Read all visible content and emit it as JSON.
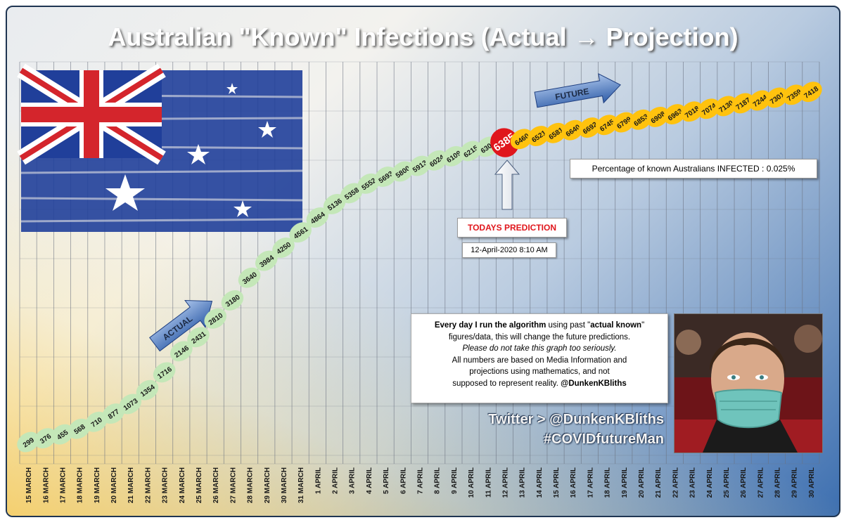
{
  "title": "Australian \"Known\" Infections (Actual → Projection)",
  "labels": {
    "actual": "ACTUAL",
    "future": "FUTURE",
    "todays_prediction": "TODAYS PREDICTION",
    "prediction_time": "12-April-2020 8:10 AM",
    "percentage": "Percentage  of known  Australians INFECTED : 0.025%",
    "twitter_handle": "Twitter > @DunkenKBliths",
    "hashtag": "#COVIDfutureMan"
  },
  "info": {
    "line1_bold": "Every day I run the algorithm",
    "line1_rest": " using past \"",
    "line1_bold2": "actual known",
    "line1_end": "\"",
    "line2": "figures/data, this will change the future  predictions.",
    "line3": "Please do not take this graph too seriously.",
    "line4": "All numbers  are based on Media Information  and",
    "line5": "projections using  mathematics, and  not",
    "line6_a": "supposed to represent  reality. ",
    "line6_b": "@DunkenKBliths"
  },
  "colors": {
    "actual": "#c4e7b8",
    "today": "#e0161c",
    "future": "#ffc20e",
    "arrow": "#4a74b8"
  },
  "icons": [
    "australian-flag-image",
    "masked-man-photo",
    "actual-arrow-icon",
    "future-arrow-icon",
    "up-arrow-icon"
  ],
  "chart_data": {
    "type": "line",
    "title": "Australian \"Known\" Infections (Actual → Projection)",
    "xlabel": "",
    "ylabel": "",
    "categories": [
      "15 MARCH",
      "16 MARCH",
      "17 MARCH",
      "18 MARCH",
      "19 MARCH",
      "20 MARCH",
      "21 MARCH",
      "22 MARCH",
      "23 MARCH",
      "24 MARCH",
      "25 MARCH",
      "26 MARCH",
      "27 MARCH",
      "28 MARCH",
      "29 MARCH",
      "30 MARCH",
      "31 MARCH",
      "1 APRIL",
      "2 APRIL",
      "3 APRIL",
      "4 APRIL",
      "5 APRIL",
      "6 APRIL",
      "7 APRIL",
      "8 APRIL",
      "9 APRIL",
      "10 APRIL",
      "11 APRIL",
      "12 APRIL",
      "13 APRIL",
      "14 APRIL",
      "15 APRIL",
      "16 APRIL",
      "17 APRIL",
      "18 APRIL",
      "19 APRIL",
      "20 APRIL",
      "21 APRIL",
      "22 APRIL",
      "23 APRIL",
      "24 APRIL",
      "25 APRIL",
      "26 APRIL",
      "27 APRIL",
      "28 APRIL",
      "29 APRIL",
      "30 APRIL"
    ],
    "values": [
      299,
      376,
      455,
      568,
      710,
      877,
      1073,
      1354,
      1716,
      2146,
      2431,
      2810,
      3180,
      3640,
      3984,
      4250,
      4561,
      4864,
      5136,
      5358,
      5552,
      5693,
      5800,
      5913,
      6024,
      6109,
      6215,
      6303,
      6385,
      6460,
      6521,
      6581,
      6640,
      6692,
      6745,
      6799,
      6853,
      6908,
      6963,
      7018,
      7074,
      7130,
      7187,
      7244,
      7301,
      7359,
      7418
    ],
    "today_index": 28,
    "series": [
      {
        "name": "ACTUAL",
        "from": 0,
        "to": 27
      },
      {
        "name": "TODAYS PREDICTION",
        "from": 28,
        "to": 28
      },
      {
        "name": "FUTURE",
        "from": 29,
        "to": 46
      }
    ],
    "grid": true
  }
}
